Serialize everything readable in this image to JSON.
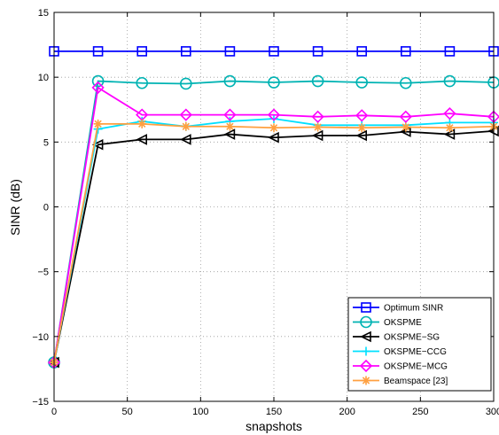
{
  "chart_data": {
    "type": "line",
    "xlabel": "snapshots",
    "ylabel": "SINR (dB)",
    "xlim": [
      0,
      300
    ],
    "ylim": [
      -15,
      15
    ],
    "xticks": [
      0,
      50,
      100,
      150,
      200,
      250,
      300
    ],
    "yticks": [
      -15,
      -10,
      -5,
      0,
      5,
      10,
      15
    ],
    "xtick_labels": [
      "0",
      "50",
      "100",
      "150",
      "200",
      "250",
      "300"
    ],
    "ytick_labels": [
      "−15",
      "−10",
      "−5",
      "0",
      "5",
      "10",
      "15"
    ],
    "grid": true,
    "legend_position": "bottom-right",
    "x": [
      0,
      30,
      60,
      90,
      120,
      150,
      180,
      210,
      240,
      270,
      300
    ],
    "series": [
      {
        "name": "Optimum SINR",
        "color": "#0000ff",
        "marker": "square",
        "values": [
          12,
          12,
          12,
          12,
          12,
          12,
          12,
          12,
          12,
          12,
          12
        ]
      },
      {
        "name": "OKSPME",
        "color": "#00b3b3",
        "marker": "circle",
        "values": [
          -12,
          9.7,
          9.55,
          9.5,
          9.7,
          9.6,
          9.7,
          9.6,
          9.55,
          9.7,
          9.6
        ]
      },
      {
        "name": "OKSPME−SG",
        "color": "#000000",
        "marker": "triangle-left",
        "values": [
          -12,
          4.8,
          5.2,
          5.2,
          5.6,
          5.35,
          5.5,
          5.5,
          5.8,
          5.6,
          5.85
        ]
      },
      {
        "name": "OKSPME−CCG",
        "color": "#00e0ff",
        "marker": "plus",
        "values": [
          -12,
          6.0,
          6.6,
          6.2,
          6.6,
          6.8,
          6.3,
          6.3,
          6.3,
          6.5,
          6.5
        ]
      },
      {
        "name": "OKSPME−MCG",
        "color": "#ff00ff",
        "marker": "diamond",
        "values": [
          -12,
          9.2,
          7.1,
          7.1,
          7.1,
          7.1,
          6.95,
          7.05,
          6.95,
          7.2,
          6.95
        ]
      },
      {
        "name": "Beamspace [23]",
        "color": "#ffa040",
        "marker": "asterisk",
        "values": [
          -12,
          6.4,
          6.4,
          6.2,
          6.2,
          6.1,
          6.15,
          6.1,
          6.15,
          6.1,
          6.2
        ]
      }
    ]
  }
}
